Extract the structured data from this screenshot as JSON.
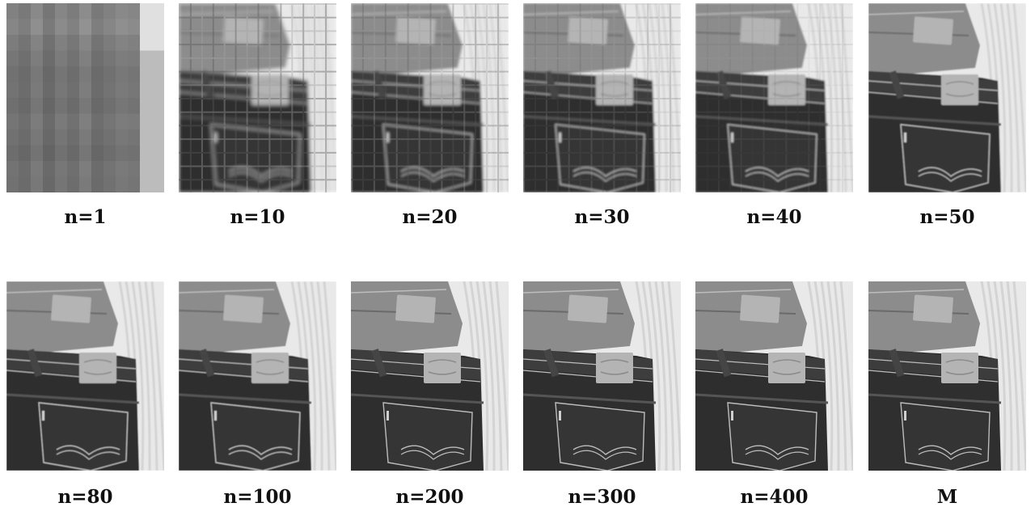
{
  "panels": [
    {
      "label": "n=1",
      "quality": 1
    },
    {
      "label": "n=10",
      "quality": 10
    },
    {
      "label": "n=20",
      "quality": 20
    },
    {
      "label": "n=30",
      "quality": 30
    },
    {
      "label": "n=40",
      "quality": 40
    },
    {
      "label": "n=50",
      "quality": 50
    },
    {
      "label": "n=80",
      "quality": 80
    },
    {
      "label": "n=100",
      "quality": 100
    },
    {
      "label": "n=200",
      "quality": 200
    },
    {
      "label": "n=300",
      "quality": 300
    },
    {
      "label": "n=400",
      "quality": 400
    },
    {
      "label": "M",
      "quality": 1000
    }
  ],
  "colors": {
    "denim_dark": "#2f2f2f",
    "denim_mid": "#555555",
    "denim_light": "#8c8c8c",
    "patch": "#b4b4b4",
    "background_cloth": "#e9e9e9",
    "stitch": "#bdbdbd"
  }
}
